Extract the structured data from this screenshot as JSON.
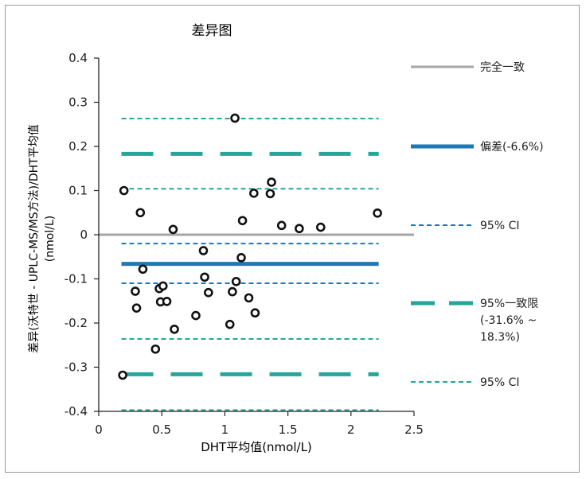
{
  "chart_data": {
    "type": "scatter",
    "title": "差异图",
    "xlabel": "DHT平均值(nmol/L)",
    "ylabel_lines": [
      "差异(沃特世 - UPLC-MS/MS方法)/DHT平均值",
      "(nmol/L)"
    ],
    "xlim": [
      0,
      2.5
    ],
    "ylim": [
      -0.4,
      0.4
    ],
    "x_ticks": [
      0,
      0.5,
      1,
      1.5,
      2,
      2.5
    ],
    "x_tick_labels": [
      "0",
      "0.5",
      "1",
      "1.5",
      "2",
      "2.5"
    ],
    "y_ticks": [
      0.4,
      0.3,
      0.2,
      0.1,
      0,
      -0.1,
      -0.2,
      -0.3,
      -0.4
    ],
    "y_tick_labels": [
      "0.4",
      "0.3",
      "0.2",
      "0.1",
      "0",
      "-0.1",
      "-0.2",
      "-0.3",
      "-0.4"
    ],
    "grid": false,
    "legend_position": "right",
    "reference_lines": [
      {
        "key": "identity",
        "y": 0,
        "style": "solid",
        "color": "#a6a6a6",
        "width": 3,
        "x_start": 0,
        "x_end": 2.5
      },
      {
        "key": "bias",
        "y": -0.066,
        "style": "solid",
        "color": "#1f78b4",
        "width": 5,
        "x_start": 0.18,
        "x_end": 2.22
      },
      {
        "key": "bias_ci_upper",
        "y": -0.02,
        "style": "dotted",
        "color": "#1f78b4",
        "width": 2,
        "x_start": 0.18,
        "x_end": 2.22
      },
      {
        "key": "bias_ci_lower",
        "y": -0.11,
        "style": "dotted",
        "color": "#1f78b4",
        "width": 2,
        "x_start": 0.18,
        "x_end": 2.22
      },
      {
        "key": "upper_loa",
        "y": 0.183,
        "style": "dashed",
        "color": "#26a69a",
        "width": 5,
        "x_start": 0.18,
        "x_end": 2.22
      },
      {
        "key": "lower_loa",
        "y": -0.316,
        "style": "dashed",
        "color": "#26a69a",
        "width": 5,
        "x_start": 0.18,
        "x_end": 2.22
      },
      {
        "key": "upper_loa_ci_upper",
        "y": 0.263,
        "style": "dotted",
        "color": "#26a69a",
        "width": 2,
        "x_start": 0.18,
        "x_end": 2.22
      },
      {
        "key": "upper_loa_ci_lower",
        "y": 0.104,
        "style": "dotted",
        "color": "#26a69a",
        "width": 2,
        "x_start": 0.18,
        "x_end": 2.22
      },
      {
        "key": "lower_loa_ci_upper",
        "y": -0.236,
        "style": "dotted",
        "color": "#26a69a",
        "width": 2,
        "x_start": 0.18,
        "x_end": 2.22
      },
      {
        "key": "lower_loa_ci_lower",
        "y": -0.397,
        "style": "dotted",
        "color": "#26a69a",
        "width": 2,
        "x_start": 0.18,
        "x_end": 2.22
      }
    ],
    "legend": [
      {
        "label": "完全一致",
        "style": "solid",
        "color": "#a6a6a6"
      },
      {
        "label": "偏差(-6.6%)",
        "style": "solid",
        "color": "#1f78b4"
      },
      {
        "label": "95% CI",
        "style": "dotted",
        "color": "#1f78b4"
      },
      {
        "label": "95%一致限",
        "label_lines": [
          "95%一致限",
          "(-31.6% ~",
          "18.3%)"
        ],
        "style": "dashed",
        "color": "#26a69a"
      },
      {
        "label": "95% CI",
        "style": "dotted",
        "color": "#26a69a"
      }
    ],
    "points": [
      {
        "x": 0.19,
        "y": -0.318
      },
      {
        "x": 0.2,
        "y": 0.1
      },
      {
        "x": 0.29,
        "y": -0.128
      },
      {
        "x": 0.3,
        "y": -0.166
      },
      {
        "x": 0.33,
        "y": 0.05
      },
      {
        "x": 0.35,
        "y": -0.078
      },
      {
        "x": 0.45,
        "y": -0.259
      },
      {
        "x": 0.48,
        "y": -0.122
      },
      {
        "x": 0.49,
        "y": -0.152
      },
      {
        "x": 0.51,
        "y": -0.116
      },
      {
        "x": 0.54,
        "y": -0.151
      },
      {
        "x": 0.59,
        "y": 0.012
      },
      {
        "x": 0.6,
        "y": -0.214
      },
      {
        "x": 0.77,
        "y": -0.183
      },
      {
        "x": 0.83,
        "y": -0.036
      },
      {
        "x": 0.84,
        "y": -0.096
      },
      {
        "x": 0.87,
        "y": -0.131
      },
      {
        "x": 1.04,
        "y": -0.203
      },
      {
        "x": 1.06,
        "y": -0.129
      },
      {
        "x": 1.08,
        "y": 0.264
      },
      {
        "x": 1.09,
        "y": -0.106
      },
      {
        "x": 1.13,
        "y": -0.052
      },
      {
        "x": 1.14,
        "y": 0.032
      },
      {
        "x": 1.19,
        "y": -0.143
      },
      {
        "x": 1.23,
        "y": 0.094
      },
      {
        "x": 1.24,
        "y": -0.177
      },
      {
        "x": 1.36,
        "y": 0.093
      },
      {
        "x": 1.37,
        "y": 0.119
      },
      {
        "x": 1.45,
        "y": 0.021
      },
      {
        "x": 1.59,
        "y": 0.014
      },
      {
        "x": 1.76,
        "y": 0.017
      },
      {
        "x": 2.21,
        "y": 0.049
      }
    ]
  }
}
